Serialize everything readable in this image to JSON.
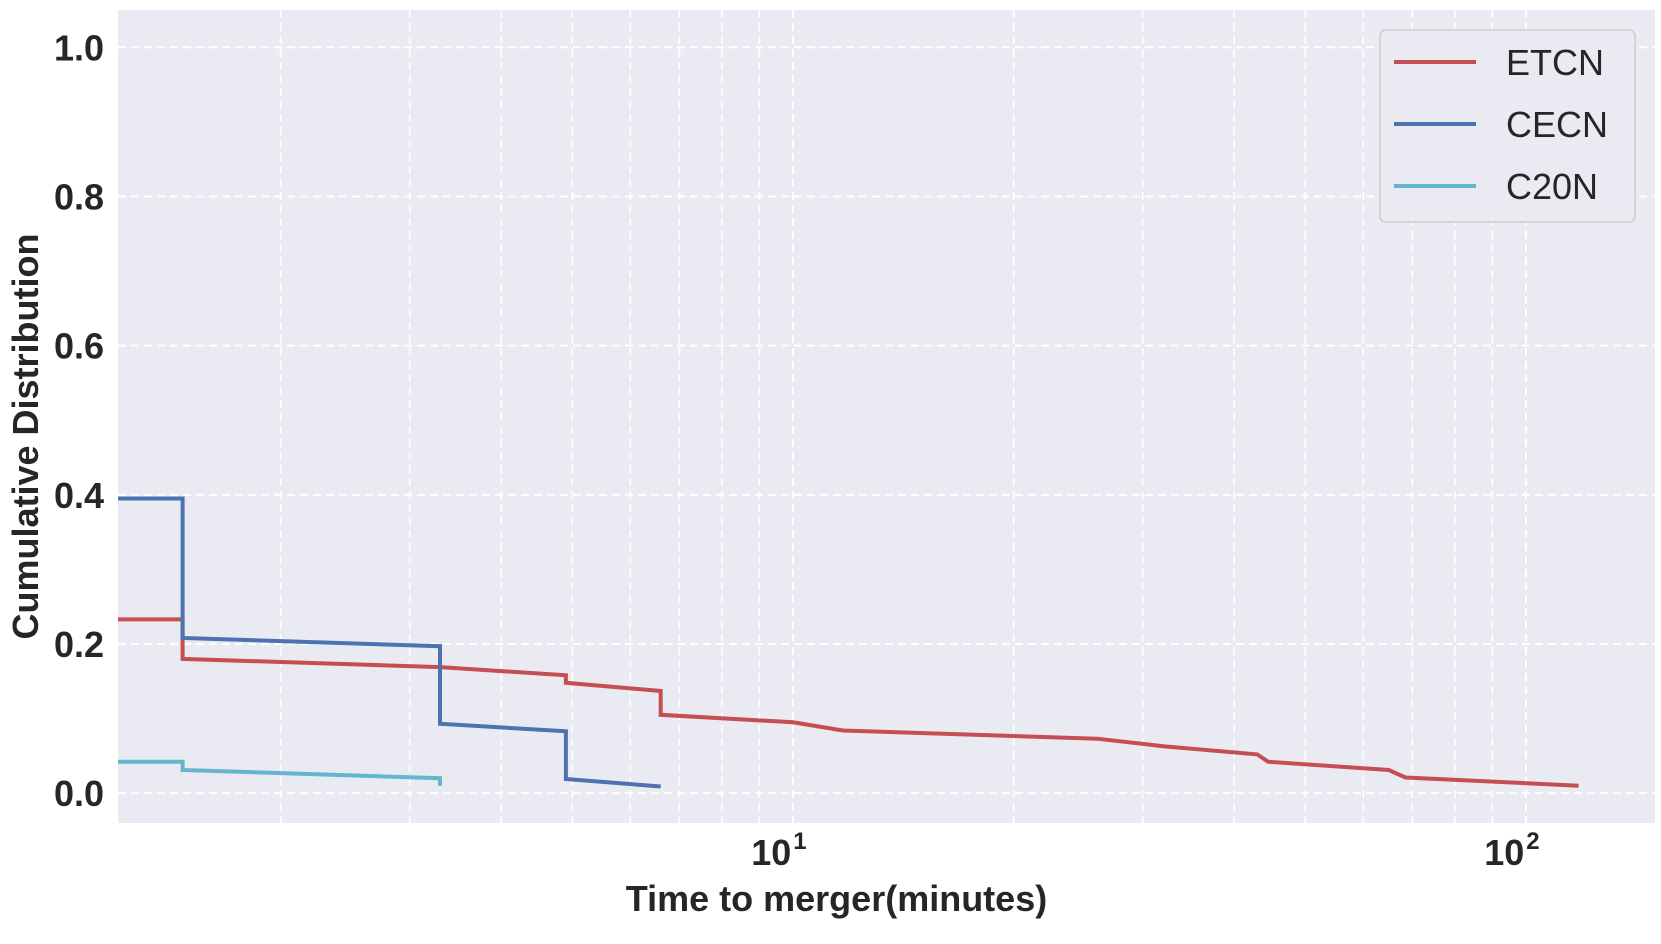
{
  "chart_data": {
    "type": "line",
    "xlabel": "Time to merger(minutes)",
    "ylabel": "Cumulative Distribution",
    "xscale": "log",
    "xlim": [
      1.2,
      150
    ],
    "ylim": [
      -0.04,
      1.05
    ],
    "grid": true,
    "legend_position": "top-right",
    "y_ticks": [
      {
        "value": 0.0,
        "label": "0.0"
      },
      {
        "value": 0.2,
        "label": "0.2"
      },
      {
        "value": 0.4,
        "label": "0.4"
      },
      {
        "value": 0.6,
        "label": "0.6"
      },
      {
        "value": 0.8,
        "label": "0.8"
      },
      {
        "value": 1.0,
        "label": "1.0"
      }
    ],
    "x_major_ticks": [
      {
        "value": 10,
        "base": "10",
        "exp": "1"
      },
      {
        "value": 100,
        "base": "10",
        "exp": "2"
      }
    ],
    "x_minor_ticks": [
      2,
      3,
      4,
      5,
      6,
      7,
      8,
      9,
      20,
      30,
      40,
      50,
      60,
      70,
      80,
      90
    ],
    "series": [
      {
        "name": "ETCN",
        "color": "#c44e52",
        "points": [
          [
            1.2,
            0.233
          ],
          [
            1.46,
            0.233
          ],
          [
            1.47,
            0.233
          ],
          [
            1.47,
            0.18
          ],
          [
            3.3,
            0.169
          ],
          [
            4.9,
            0.158
          ],
          [
            4.9,
            0.148
          ],
          [
            6.6,
            0.137
          ],
          [
            6.6,
            0.105
          ],
          [
            10,
            0.095
          ],
          [
            11.7,
            0.084
          ],
          [
            26,
            0.073
          ],
          [
            32,
            0.063
          ],
          [
            43,
            0.052
          ],
          [
            44.5,
            0.042
          ],
          [
            65,
            0.031
          ],
          [
            68.5,
            0.021
          ],
          [
            118,
            0.01
          ]
        ]
      },
      {
        "name": "CECN",
        "color": "#4c72b0",
        "points": [
          [
            1.2,
            0.395
          ],
          [
            1.47,
            0.395
          ],
          [
            1.47,
            0.208
          ],
          [
            3.3,
            0.197
          ],
          [
            3.3,
            0.093
          ],
          [
            4.9,
            0.083
          ],
          [
            4.9,
            0.019
          ],
          [
            6.6,
            0.009
          ]
        ]
      },
      {
        "name": "C20N",
        "color": "#64b5cd",
        "points": [
          [
            1.2,
            0.042
          ],
          [
            1.47,
            0.042
          ],
          [
            1.47,
            0.031
          ],
          [
            3.3,
            0.02
          ],
          [
            3.3,
            0.01
          ]
        ]
      }
    ]
  }
}
